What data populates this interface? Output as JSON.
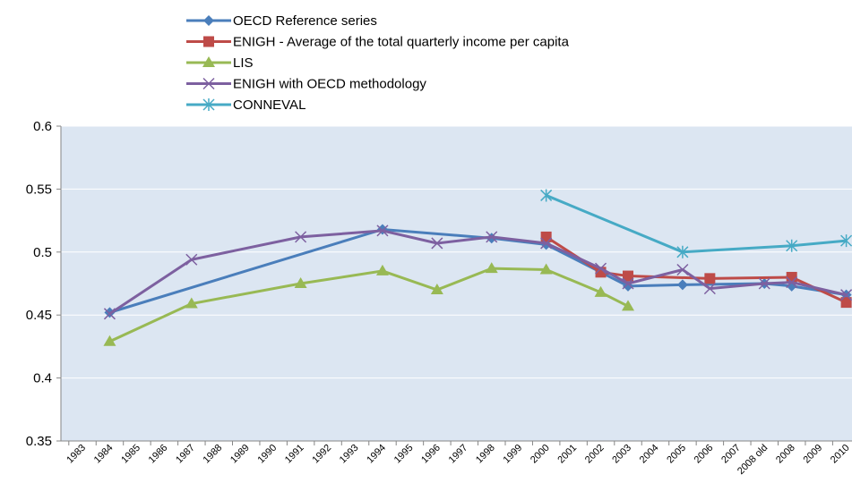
{
  "chart_data": {
    "type": "line",
    "categories": [
      "1983",
      "1984",
      "1985",
      "1986",
      "1987",
      "1988",
      "1989",
      "1990",
      "1991",
      "1992",
      "1993",
      "1994",
      "1995",
      "1996",
      "1997",
      "1998",
      "1999",
      "2000",
      "2001",
      "2002",
      "2003",
      "2004",
      "2005",
      "2006",
      "2007",
      "2008 old",
      "2008",
      "2009",
      "2010"
    ],
    "ylim": [
      0.35,
      0.6
    ],
    "yticks": [
      0.35,
      0.4,
      0.45,
      0.5,
      0.55,
      0.6
    ],
    "grid": true,
    "legend": "top",
    "series": [
      {
        "name": "OECD Reference series",
        "color": "#4a7ebb",
        "marker": "diamond",
        "values": [
          null,
          0.452,
          null,
          null,
          null,
          null,
          null,
          null,
          null,
          null,
          null,
          0.518,
          null,
          null,
          null,
          0.511,
          null,
          0.506,
          null,
          null,
          0.473,
          null,
          0.474,
          null,
          null,
          0.475,
          0.473,
          null,
          0.466
        ]
      },
      {
        "name": "ENIGH - Average of the total quarterly income per capita",
        "color": "#be4b48",
        "marker": "square",
        "values": [
          null,
          null,
          null,
          null,
          null,
          null,
          null,
          null,
          null,
          null,
          null,
          null,
          null,
          null,
          null,
          null,
          null,
          0.512,
          null,
          0.484,
          0.481,
          null,
          null,
          0.479,
          null,
          null,
          0.48,
          null,
          0.46
        ]
      },
      {
        "name": "LIS",
        "color": "#98b954",
        "marker": "triangle",
        "values": [
          null,
          0.429,
          null,
          null,
          0.459,
          null,
          null,
          null,
          0.475,
          null,
          null,
          0.485,
          null,
          0.47,
          null,
          0.487,
          null,
          0.486,
          null,
          0.468,
          0.457,
          null,
          null,
          null,
          null,
          null,
          null,
          null,
          null
        ]
      },
      {
        "name": "ENIGH with OECD methodology",
        "color": "#7d60a0",
        "marker": "x",
        "values": [
          null,
          0.451,
          null,
          null,
          0.494,
          null,
          null,
          null,
          0.512,
          null,
          null,
          0.517,
          null,
          0.507,
          null,
          0.512,
          null,
          0.507,
          null,
          0.487,
          0.475,
          null,
          0.486,
          0.471,
          null,
          0.475,
          0.476,
          null,
          0.466
        ]
      },
      {
        "name": "CONNEVAL",
        "color": "#46aac5",
        "marker": "star",
        "values": [
          null,
          null,
          null,
          null,
          null,
          null,
          null,
          null,
          null,
          null,
          null,
          null,
          null,
          null,
          null,
          null,
          null,
          0.545,
          null,
          null,
          null,
          null,
          0.5,
          null,
          null,
          null,
          0.505,
          null,
          0.509
        ]
      }
    ]
  }
}
